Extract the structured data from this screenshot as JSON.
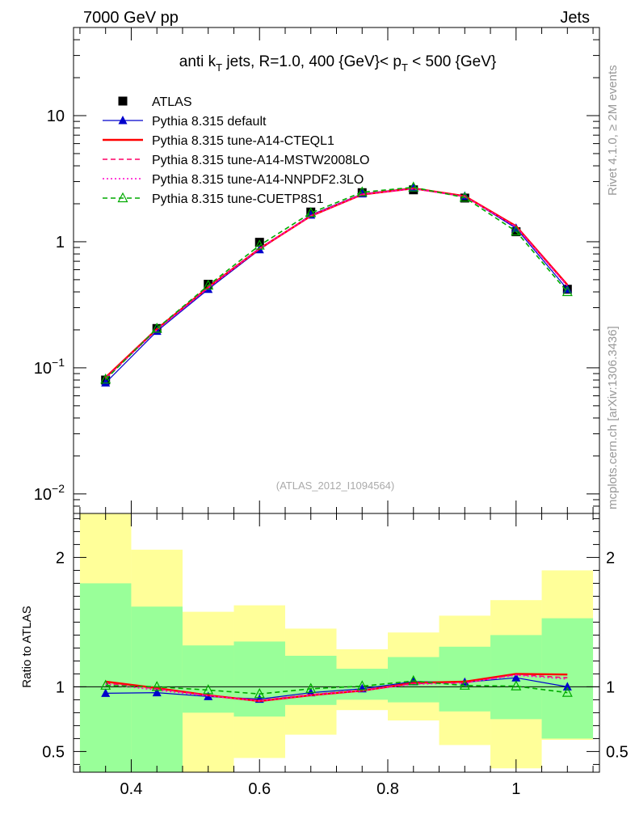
{
  "header": {
    "left": "7000 GeV pp",
    "right": "Jets"
  },
  "side_labels": {
    "rivet": "Rivet 4.1.0, ≥ 2M events",
    "mcplots": "mcplots.cern.ch [arXiv:1306.3436]"
  },
  "chart_data": [
    {
      "type": "line",
      "title": "anti k_T jets, R=1.0,  400 {GeV}< p_T < 500 {GeV}",
      "title_parts": {
        "a": "anti k",
        "a_sub": "T",
        "b": " jets, R=1.0,  400 {GeV}< p",
        "b_sub": "T",
        "c": " < 500 {GeV}"
      },
      "watermark": "(ATLAS_2012_I1094564)",
      "yscale": "log",
      "ylim": [
        0.007,
        50
      ],
      "xlim": [
        0.31,
        1.13
      ],
      "y_ticks": [
        {
          "v": 0.01,
          "base": "10",
          "exp": "−2"
        },
        {
          "v": 0.1,
          "base": "10",
          "exp": "−1"
        },
        {
          "v": 1,
          "base": "1",
          "exp": ""
        },
        {
          "v": 10,
          "base": "10",
          "exp": ""
        }
      ],
      "x": [
        0.36,
        0.44,
        0.52,
        0.6,
        0.68,
        0.76,
        0.84,
        0.92,
        1.0,
        1.08
      ],
      "series": [
        {
          "name": "ATLAS",
          "color": "#000000",
          "marker": "square",
          "dash": "none",
          "values": [
            0.08,
            0.205,
            0.46,
            0.99,
            1.72,
            2.45,
            2.58,
            2.22,
            1.2,
            0.42
          ]
        },
        {
          "name": "Pythia 8.315 default",
          "color": "#0000cc",
          "marker": "triangle",
          "dash": "none",
          "values": [
            0.076,
            0.195,
            0.42,
            0.865,
            1.63,
            2.4,
            2.67,
            2.3,
            1.28,
            0.42
          ]
        },
        {
          "name": "Pythia 8.315 tune-A14-CTEQL1",
          "color": "#ff0000",
          "marker": "none",
          "dash": "solid-thick",
          "values": [
            0.084,
            0.203,
            0.435,
            0.88,
            1.6,
            2.37,
            2.65,
            2.3,
            1.33,
            0.455
          ]
        },
        {
          "name": "Pythia 8.315 tune-A14-MSTW2008LO",
          "color": "#ff0066",
          "marker": "none",
          "dash": "dashed",
          "values": [
            0.083,
            0.202,
            0.433,
            0.885,
            1.61,
            2.38,
            2.64,
            2.28,
            1.32,
            0.45
          ]
        },
        {
          "name": "Pythia 8.315 tune-A14-NNPDF2.3LO",
          "color": "#ff00cc",
          "marker": "none",
          "dash": "dotted",
          "values": [
            0.082,
            0.2,
            0.43,
            0.88,
            1.6,
            2.37,
            2.63,
            2.29,
            1.31,
            0.445
          ]
        },
        {
          "name": "Pythia 8.315 tune-CUETP8S1",
          "color": "#00aa00",
          "marker": "triangle-open",
          "dash": "dashed",
          "values": [
            0.081,
            0.205,
            0.45,
            0.935,
            1.69,
            2.47,
            2.7,
            2.24,
            1.21,
            0.4
          ]
        }
      ]
    },
    {
      "type": "line",
      "ylabel": "Ratio to ATLAS",
      "ylim": [
        0.34,
        2.34
      ],
      "xlim": [
        0.31,
        1.13
      ],
      "y_ticks": [
        {
          "v": 0.5,
          "label": "0.5"
        },
        {
          "v": 1,
          "label": "1"
        },
        {
          "v": 2,
          "label": "2"
        }
      ],
      "x_ticks": [
        {
          "v": 0.4,
          "label": "0.4"
        },
        {
          "v": 0.6,
          "label": "0.6"
        },
        {
          "v": 0.8,
          "label": "0.8"
        },
        {
          "v": 1.0,
          "label": "1"
        }
      ],
      "bin_edges": [
        0.32,
        0.4,
        0.48,
        0.56,
        0.64,
        0.72,
        0.8,
        0.88,
        0.96,
        1.04,
        1.12
      ],
      "band_outer": [
        [
          0.34,
          2.34
        ],
        [
          0.46,
          2.06
        ],
        [
          0.34,
          1.58
        ],
        [
          0.45,
          1.63
        ],
        [
          0.63,
          1.45
        ],
        [
          0.82,
          1.29
        ],
        [
          0.74,
          1.42
        ],
        [
          0.55,
          1.55
        ],
        [
          0.37,
          1.67
        ],
        [
          0.59,
          1.9
        ]
      ],
      "band_inner": [
        [
          0.34,
          1.8
        ],
        [
          0.34,
          1.62
        ],
        [
          0.8,
          1.32
        ],
        [
          0.77,
          1.35
        ],
        [
          0.86,
          1.24
        ],
        [
          0.9,
          1.14
        ],
        [
          0.88,
          1.23
        ],
        [
          0.81,
          1.31
        ],
        [
          0.75,
          1.4
        ],
        [
          0.6,
          1.53
        ]
      ],
      "band_colors": {
        "outer": "#ffff99",
        "inner": "#99ff99"
      },
      "series": [
        {
          "name": "Pythia 8.315 default",
          "color": "#0000cc",
          "marker": "triangle",
          "dash": "none",
          "values": [
            0.95,
            0.955,
            0.925,
            0.905,
            0.955,
            0.985,
            1.04,
            1.035,
            1.07,
            1.0
          ]
        },
        {
          "name": "Pythia 8.315 tune-A14-CTEQL1",
          "color": "#ff0000",
          "marker": "none",
          "dash": "solid-thick",
          "values": [
            1.04,
            0.99,
            0.935,
            0.89,
            0.935,
            0.97,
            1.03,
            1.04,
            1.1,
            1.095
          ]
        },
        {
          "name": "Pythia 8.315 tune-A14-MSTW2008LO",
          "color": "#ff0066",
          "marker": "none",
          "dash": "dashed",
          "values": [
            1.03,
            0.985,
            0.935,
            0.895,
            0.94,
            0.975,
            1.025,
            1.03,
            1.095,
            1.07
          ]
        },
        {
          "name": "Pythia 8.315 tune-A14-NNPDF2.3LO",
          "color": "#ff00cc",
          "marker": "none",
          "dash": "dotted",
          "values": [
            1.02,
            0.975,
            0.93,
            0.89,
            0.935,
            0.97,
            1.02,
            1.03,
            1.09,
            1.06
          ]
        },
        {
          "name": "Pythia 8.315 tune-CUETP8S1",
          "color": "#00aa00",
          "marker": "triangle-open",
          "dash": "dashed",
          "values": [
            1.01,
            1.0,
            0.975,
            0.945,
            0.985,
            1.005,
            1.045,
            1.01,
            1.005,
            0.955
          ]
        }
      ]
    }
  ]
}
